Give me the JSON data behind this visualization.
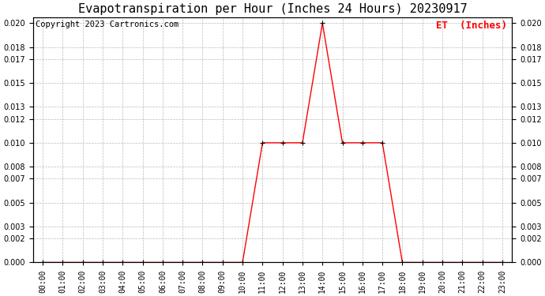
{
  "title": "Evapotranspiration per Hour (Inches 24 Hours) 20230917",
  "copyright_text": "Copyright 2023 Cartronics.com",
  "legend_label": "ET  (Inches)",
  "line_color": "#FF0000",
  "marker_color": "#000000",
  "background_color": "#FFFFFF",
  "grid_color": "#BBBBBB",
  "hours": [
    0,
    1,
    2,
    3,
    4,
    5,
    6,
    7,
    8,
    9,
    10,
    11,
    12,
    13,
    14,
    15,
    16,
    17,
    18,
    19,
    20,
    21,
    22,
    23
  ],
  "et_values": [
    0.0,
    0.0,
    0.0,
    0.0,
    0.0,
    0.0,
    0.0,
    0.0,
    0.0,
    0.0,
    0.0,
    0.01,
    0.01,
    0.01,
    0.02,
    0.01,
    0.01,
    0.01,
    0.0,
    0.0,
    0.0,
    0.0,
    0.0,
    0.0
  ],
  "ylim": [
    0.0,
    0.0205
  ],
  "yticks": [
    0.0,
    0.002,
    0.003,
    0.005,
    0.007,
    0.008,
    0.01,
    0.012,
    0.013,
    0.015,
    0.017,
    0.018,
    0.02
  ],
  "title_fontsize": 11,
  "legend_fontsize": 9,
  "copyright_fontsize": 7.5,
  "tick_fontsize": 7,
  "fig_width": 6.9,
  "fig_height": 3.75
}
